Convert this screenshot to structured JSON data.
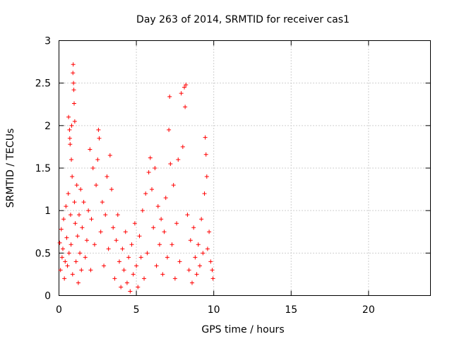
{
  "chart_data": {
    "type": "scatter",
    "title": "Day 263 of 2014, SRMTID for receiver cas1",
    "xlabel": "GPS time / hours",
    "ylabel": "SRMTID / TECUs",
    "xlim": [
      0,
      24
    ],
    "ylim": [
      0,
      3
    ],
    "xticks": [
      0,
      5,
      10,
      15,
      20
    ],
    "yticks": [
      0,
      0.5,
      1,
      1.5,
      2,
      2.5,
      3
    ],
    "xtick_labels": [
      "0",
      "5",
      "10",
      "15",
      "20"
    ],
    "ytick_labels": [
      "0",
      "0.5",
      "1",
      "1.5",
      "2",
      "2.5",
      "3"
    ],
    "grid": true,
    "marker": "+",
    "color": "#ff0000",
    "series": [
      {
        "name": "SRMTID",
        "points": [
          [
            0.05,
            0.62
          ],
          [
            0.1,
            0.3
          ],
          [
            0.15,
            0.78
          ],
          [
            0.2,
            0.45
          ],
          [
            0.25,
            0.55
          ],
          [
            0.3,
            0.9
          ],
          [
            0.35,
            0.2
          ],
          [
            0.4,
            0.4
          ],
          [
            0.45,
            1.05
          ],
          [
            0.5,
            0.68
          ],
          [
            0.55,
            0.35
          ],
          [
            0.6,
            1.2
          ],
          [
            0.62,
            2.1
          ],
          [
            0.65,
            0.5
          ],
          [
            0.68,
            1.95
          ],
          [
            0.7,
            1.85
          ],
          [
            0.72,
            1.78
          ],
          [
            0.75,
            0.95
          ],
          [
            0.78,
            0.6
          ],
          [
            0.8,
            1.6
          ],
          [
            0.82,
            2.0
          ],
          [
            0.85,
            1.4
          ],
          [
            0.88,
            0.25
          ],
          [
            0.9,
            2.62
          ],
          [
            0.92,
            2.72
          ],
          [
            0.94,
            2.5
          ],
          [
            0.96,
            2.42
          ],
          [
            0.98,
            2.26
          ],
          [
            1.0,
            1.1
          ],
          [
            1.02,
            2.05
          ],
          [
            1.05,
            0.85
          ],
          [
            1.1,
            0.4
          ],
          [
            1.15,
            1.3
          ],
          [
            1.2,
            0.7
          ],
          [
            1.25,
            0.15
          ],
          [
            1.3,
            0.95
          ],
          [
            1.35,
            0.5
          ],
          [
            1.4,
            1.25
          ],
          [
            1.45,
            0.3
          ],
          [
            1.5,
            0.8
          ],
          [
            1.6,
            1.1
          ],
          [
            1.7,
            0.45
          ],
          [
            1.8,
            0.65
          ],
          [
            1.9,
            1.0
          ],
          [
            2.0,
            1.72
          ],
          [
            2.05,
            0.3
          ],
          [
            2.1,
            0.9
          ],
          [
            2.2,
            1.5
          ],
          [
            2.3,
            0.6
          ],
          [
            2.4,
            1.3
          ],
          [
            2.5,
            1.6
          ],
          [
            2.55,
            1.95
          ],
          [
            2.6,
            1.85
          ],
          [
            2.7,
            0.75
          ],
          [
            2.8,
            1.1
          ],
          [
            2.9,
            0.35
          ],
          [
            3.0,
            0.95
          ],
          [
            3.1,
            1.4
          ],
          [
            3.2,
            0.55
          ],
          [
            3.3,
            1.65
          ],
          [
            3.4,
            1.25
          ],
          [
            3.5,
            0.8
          ],
          [
            3.6,
            0.2
          ],
          [
            3.7,
            0.65
          ],
          [
            3.8,
            0.95
          ],
          [
            3.9,
            0.4
          ],
          [
            4.0,
            0.1
          ],
          [
            4.1,
            0.55
          ],
          [
            4.2,
            0.3
          ],
          [
            4.3,
            0.75
          ],
          [
            4.4,
            0.15
          ],
          [
            4.5,
            0.45
          ],
          [
            4.6,
            0.05
          ],
          [
            4.7,
            0.6
          ],
          [
            4.8,
            0.25
          ],
          [
            4.9,
            0.85
          ],
          [
            5.0,
            0.35
          ],
          [
            5.1,
            0.1
          ],
          [
            5.2,
            0.7
          ],
          [
            5.3,
            0.45
          ],
          [
            5.4,
            1.0
          ],
          [
            5.5,
            0.2
          ],
          [
            5.6,
            1.2
          ],
          [
            5.7,
            0.5
          ],
          [
            5.8,
            1.45
          ],
          [
            5.9,
            1.62
          ],
          [
            6.0,
            1.25
          ],
          [
            6.1,
            0.8
          ],
          [
            6.2,
            1.5
          ],
          [
            6.3,
            0.35
          ],
          [
            6.4,
            1.05
          ],
          [
            6.5,
            0.6
          ],
          [
            6.6,
            0.9
          ],
          [
            6.7,
            0.25
          ],
          [
            6.8,
            0.75
          ],
          [
            6.9,
            1.15
          ],
          [
            7.0,
            0.45
          ],
          [
            7.1,
            1.95
          ],
          [
            7.15,
            2.34
          ],
          [
            7.2,
            1.55
          ],
          [
            7.3,
            0.6
          ],
          [
            7.4,
            1.3
          ],
          [
            7.5,
            0.2
          ],
          [
            7.6,
            0.85
          ],
          [
            7.7,
            1.6
          ],
          [
            7.8,
            0.4
          ],
          [
            7.9,
            2.38
          ],
          [
            8.0,
            1.75
          ],
          [
            8.1,
            2.45
          ],
          [
            8.15,
            2.22
          ],
          [
            8.2,
            2.48
          ],
          [
            8.3,
            0.95
          ],
          [
            8.4,
            0.3
          ],
          [
            8.5,
            0.65
          ],
          [
            8.6,
            0.15
          ],
          [
            8.7,
            0.8
          ],
          [
            8.8,
            0.45
          ],
          [
            8.9,
            0.25
          ],
          [
            9.0,
            0.6
          ],
          [
            9.1,
            0.35
          ],
          [
            9.2,
            0.9
          ],
          [
            9.3,
            0.5
          ],
          [
            9.4,
            1.2
          ],
          [
            9.45,
            1.86
          ],
          [
            9.5,
            1.66
          ],
          [
            9.55,
            1.4
          ],
          [
            9.6,
            0.55
          ],
          [
            9.7,
            0.75
          ],
          [
            9.8,
            0.4
          ],
          [
            9.9,
            0.3
          ],
          [
            9.95,
            0.2
          ]
        ]
      }
    ]
  }
}
